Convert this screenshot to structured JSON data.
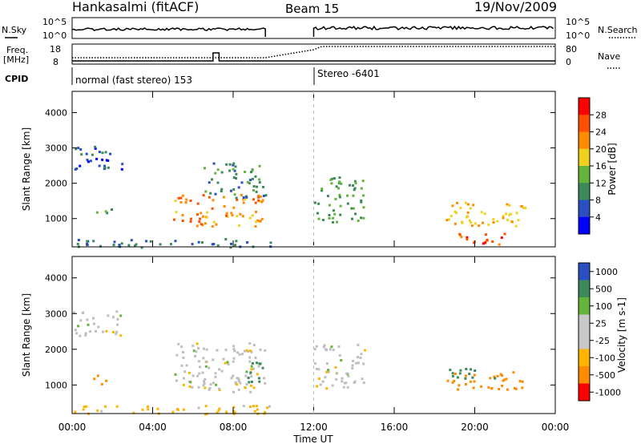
{
  "header": {
    "station": "Hankasalmi (fitACF)",
    "beam": "Beam 15",
    "date": "19/Nov/2009"
  },
  "summary": {
    "nsky_label": "N.Sky",
    "nsky_ticks": [
      "10^5",
      "10^0"
    ],
    "nsearch_label": "N.Search",
    "freq_label": "Freq.",
    "freq_unit": "[MHz]",
    "freq_ticks": [
      "18",
      "8"
    ],
    "nave_label": "Nave",
    "nave_ticks": [
      "80",
      "0"
    ],
    "cpid_label": "CPID",
    "cpid_1": "normal (fast stereo) 153",
    "cpid_2": "Stereo -6401"
  },
  "colors": {
    "power_scale": [
      "#0000ff",
      "#2a4fc0",
      "#3c8a5a",
      "#64b43c",
      "#f0d21e",
      "#ff8c00",
      "#ff5000",
      "#ff0000"
    ],
    "velocity_scale": [
      "#2a4fc0",
      "#3c8a5a",
      "#64b43c",
      "#c8c8c8",
      "#c8c8c8",
      "#ffb400",
      "#ff8c00",
      "#ff0000"
    ],
    "ground_scatter": "#bebebe"
  },
  "chart_data": [
    {
      "type": "heatmap",
      "name": "power",
      "ylabel": "Slant Range [km]",
      "ylim": [
        200,
        4600
      ],
      "yticks": [
        "1000",
        "2000",
        "3000",
        "4000"
      ],
      "xlabel": "Time UT",
      "xlim": [
        "00:00",
        "24:00"
      ],
      "xticks": [
        "00:00",
        "04:00",
        "08:00",
        "12:00",
        "16:00",
        "20:00",
        "00:00"
      ],
      "colorbar": {
        "label": "Power [dB]",
        "ticks": [
          "28",
          "24",
          "20",
          "16",
          "12",
          "8",
          "4"
        ],
        "range": [
          0,
          30
        ]
      },
      "blobs": [
        {
          "t0": 0.0,
          "t1": 2.5,
          "r0": 2400,
          "r1": 3100,
          "value": 6
        },
        {
          "t0": 1.0,
          "t1": 2.0,
          "r0": 1050,
          "r1": 1300,
          "value": 14
        },
        {
          "t0": 5.0,
          "t1": 9.6,
          "r0": 800,
          "r1": 1700,
          "value": 22
        },
        {
          "t0": 6.5,
          "t1": 9.6,
          "r0": 1600,
          "r1": 2600,
          "value": 10
        },
        {
          "t0": 12.0,
          "t1": 14.5,
          "r0": 900,
          "r1": 2200,
          "value": 12
        },
        {
          "t0": 18.5,
          "t1": 22.5,
          "r0": 800,
          "r1": 1500,
          "value": 20
        },
        {
          "t0": 19.0,
          "t1": 21.5,
          "r0": 300,
          "r1": 700,
          "value": 26
        },
        {
          "t0": 0.0,
          "t1": 10.0,
          "r0": 200,
          "r1": 450,
          "value": 8
        }
      ]
    },
    {
      "type": "heatmap",
      "name": "velocity",
      "ylabel": "Slant Range [km]",
      "ylim": [
        200,
        4600
      ],
      "yticks": [
        "1000",
        "2000",
        "3000",
        "4000"
      ],
      "xlabel": "Time UT",
      "xlim": [
        "00:00",
        "24:00"
      ],
      "xticks": [
        "00:00",
        "04:00",
        "08:00",
        "12:00",
        "16:00",
        "20:00",
        "00:00"
      ],
      "colorbar": {
        "label": "Velocity [m s-1]",
        "ticks": [
          "1000",
          "500",
          "100",
          "25",
          "-25",
          "-100",
          "-500",
          "-1000"
        ],
        "range": [
          -1000,
          1000
        ]
      },
      "blobs": [
        {
          "t0": 0.0,
          "t1": 2.5,
          "r0": 2400,
          "r1": 3100,
          "value": 0
        },
        {
          "t0": 1.0,
          "t1": 2.0,
          "r0": 1050,
          "r1": 1300,
          "value": -150
        },
        {
          "t0": 5.0,
          "t1": 9.6,
          "r0": 800,
          "r1": 2200,
          "value": 0
        },
        {
          "t0": 8.5,
          "t1": 9.6,
          "r0": 1000,
          "r1": 1700,
          "value": 120
        },
        {
          "t0": 12.0,
          "t1": 14.5,
          "r0": 900,
          "r1": 2200,
          "value": 0
        },
        {
          "t0": 18.5,
          "t1": 22.5,
          "r0": 900,
          "r1": 1400,
          "value": -200
        },
        {
          "t0": 18.5,
          "t1": 21.0,
          "r0": 1200,
          "r1": 1500,
          "value": 150
        },
        {
          "t0": 0.0,
          "t1": 10.0,
          "r0": 200,
          "r1": 450,
          "value": -60
        }
      ]
    }
  ]
}
